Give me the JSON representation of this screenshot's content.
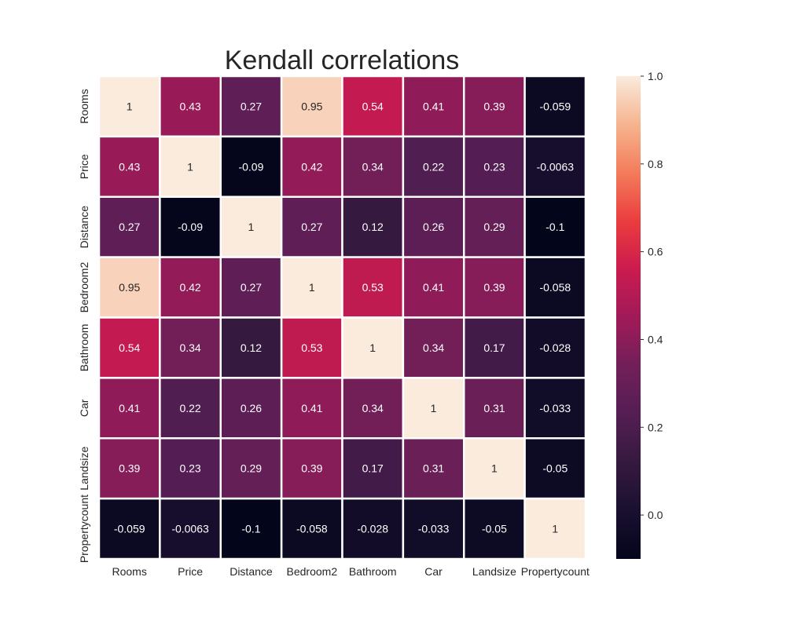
{
  "chart_data": {
    "type": "heatmap",
    "title": "Kendall correlations",
    "x_labels": [
      "Rooms",
      "Price",
      "Distance",
      "Bedroom2",
      "Bathroom",
      "Car",
      "Landsize",
      "Propertycount"
    ],
    "y_labels": [
      "Rooms",
      "Price",
      "Distance",
      "Bedroom2",
      "Bathroom",
      "Car",
      "Landsize",
      "Propertycount"
    ],
    "values": [
      [
        1,
        0.43,
        0.27,
        0.95,
        0.54,
        0.41,
        0.39,
        -0.059
      ],
      [
        0.43,
        1,
        -0.09,
        0.42,
        0.34,
        0.22,
        0.23,
        -0.0063
      ],
      [
        0.27,
        -0.09,
        1,
        0.27,
        0.12,
        0.26,
        0.29,
        -0.1
      ],
      [
        0.95,
        0.42,
        0.27,
        1,
        0.53,
        0.41,
        0.39,
        -0.058
      ],
      [
        0.54,
        0.34,
        0.12,
        0.53,
        1,
        0.34,
        0.17,
        -0.028
      ],
      [
        0.41,
        0.22,
        0.26,
        0.41,
        0.34,
        1,
        0.31,
        -0.033
      ],
      [
        0.39,
        0.23,
        0.29,
        0.39,
        0.17,
        0.31,
        1,
        -0.05
      ],
      [
        -0.059,
        -0.0063,
        -0.1,
        -0.058,
        -0.028,
        -0.033,
        -0.05,
        1
      ]
    ],
    "colorbar": {
      "colormap": "rocket",
      "range": [
        -0.1,
        1.0
      ],
      "ticks": [
        0.0,
        0.2,
        0.4,
        0.6,
        0.8,
        1.0
      ],
      "tick_labels": [
        "0.0",
        "0.2",
        "0.4",
        "0.6",
        "0.8",
        "1.0"
      ]
    },
    "cell_border_color": "#ffffff",
    "annotated": true
  }
}
